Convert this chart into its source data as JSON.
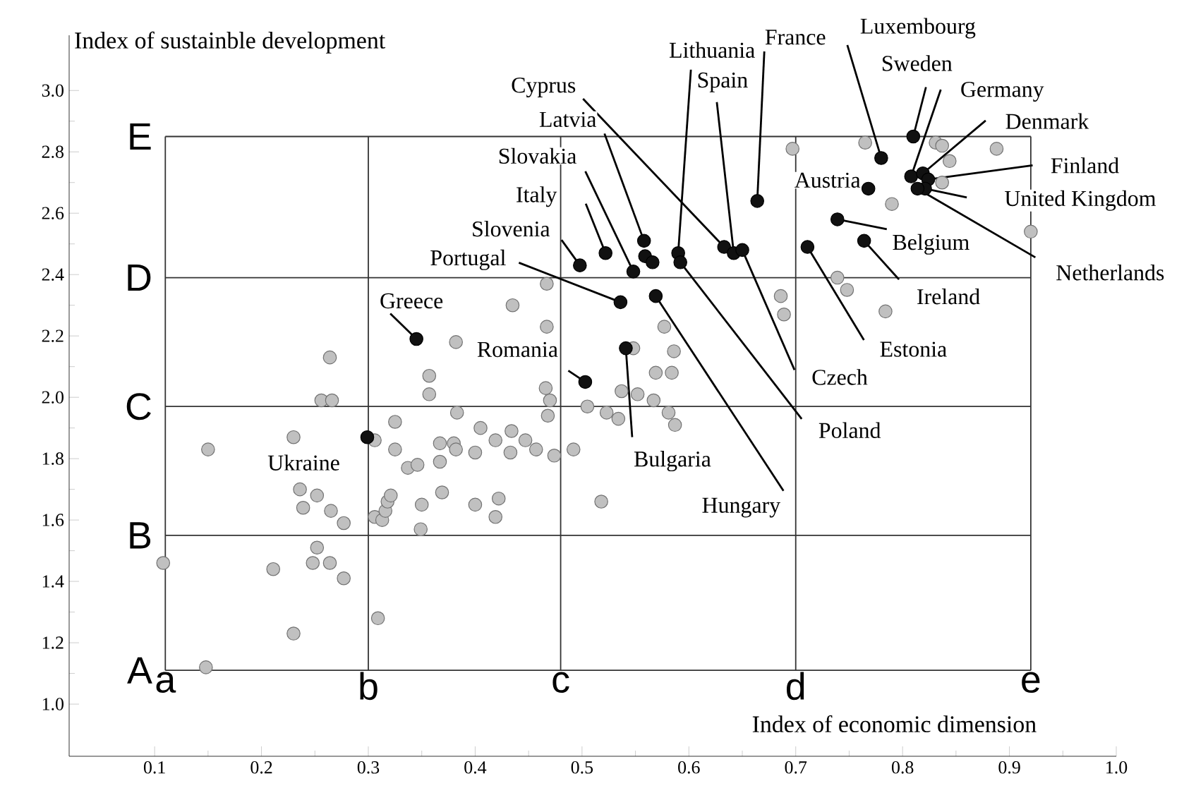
{
  "chart_data": {
    "type": "scatter",
    "xlabel": "Index of economic dimension",
    "ylabel": "Index of sustainble development",
    "xlim": [
      0.02,
      1.0
    ],
    "ylim": [
      0.83,
      3.18
    ],
    "xticks": [
      0.1,
      0.2,
      0.3,
      0.4,
      0.5,
      0.6,
      0.7,
      0.8,
      0.9,
      {
        "value": 1,
        "label": "1.0"
      }
    ],
    "yticks": [
      {
        "value": 1,
        "label": "1.0"
      },
      1.2,
      1.4,
      1.6,
      1.8,
      {
        "value": 2,
        "label": "2.0"
      },
      2.2,
      2.4,
      2.6,
      2.8,
      {
        "value": 3,
        "label": "3.0"
      }
    ],
    "marker": "circle",
    "series": [
      {
        "color": "#c0c0c0",
        "x": [
          0.264,
          0.256,
          0.266,
          0.23,
          0.15,
          0.306,
          0.325,
          0.325,
          0.337,
          0.346,
          0.357,
          0.357,
          0.382,
          0.383,
          0.367,
          0.38,
          0.382,
          0.367,
          0.4,
          0.405,
          0.419,
          0.434,
          0.433,
          0.447,
          0.435,
          0.236,
          0.252,
          0.239,
          0.265,
          0.277,
          0.306,
          0.313,
          0.316,
          0.318,
          0.321,
          0.35,
          0.349,
          0.369,
          0.4,
          0.419,
          0.422,
          0.108,
          0.211,
          0.252,
          0.248,
          0.264,
          0.277,
          0.309,
          0.23,
          0.148,
          0.467,
          0.467,
          0.466,
          0.47,
          0.468,
          0.457,
          0.474,
          0.492,
          0.518,
          0.505,
          0.523,
          0.534,
          0.537,
          0.552,
          0.567,
          0.581,
          0.587,
          0.548,
          0.569,
          0.584,
          0.586,
          0.577,
          0.686,
          0.689,
          0.697,
          0.765,
          0.831,
          0.837,
          0.844,
          0.888,
          0.837,
          0.79,
          0.92,
          0.739,
          0.748,
          0.784
        ],
        "values": [
          2.13,
          1.99,
          1.99,
          1.87,
          1.83,
          1.86,
          1.92,
          1.83,
          1.77,
          1.78,
          2.07,
          2.01,
          2.18,
          1.95,
          1.85,
          1.85,
          1.83,
          1.79,
          1.82,
          1.9,
          1.86,
          1.89,
          1.82,
          1.86,
          2.3,
          1.7,
          1.68,
          1.64,
          1.63,
          1.59,
          1.61,
          1.6,
          1.63,
          1.66,
          1.68,
          1.65,
          1.57,
          1.69,
          1.65,
          1.61,
          1.67,
          1.46,
          1.44,
          1.51,
          1.46,
          1.46,
          1.41,
          1.28,
          1.23,
          1.12,
          2.37,
          2.23,
          2.03,
          1.99,
          1.94,
          1.83,
          1.81,
          1.83,
          1.66,
          1.97,
          1.95,
          1.93,
          2.02,
          2.01,
          1.99,
          1.95,
          1.91,
          2.16,
          2.08,
          2.08,
          2.15,
          2.23,
          2.33,
          2.27,
          2.81,
          2.83,
          2.83,
          2.82,
          2.77,
          2.81,
          2.7,
          2.63,
          2.54,
          2.39,
          2.35,
          2.28
        ]
      },
      {
        "color": "#111111",
        "x": [
          0.345,
          0.299,
          0.498,
          0.522,
          0.548,
          0.558,
          0.633,
          0.59,
          0.642,
          0.65,
          0.664,
          0.536,
          0.569,
          0.541,
          0.503,
          0.592,
          0.711,
          0.78,
          0.81,
          0.768,
          0.808,
          0.819,
          0.824,
          0.821,
          0.814,
          0.739,
          0.764,
          0.559,
          0.566
        ],
        "values": [
          2.19,
          1.87,
          2.43,
          2.47,
          2.41,
          2.51,
          2.49,
          2.47,
          2.47,
          2.48,
          2.64,
          2.31,
          2.33,
          2.16,
          2.05,
          2.44,
          2.49,
          2.78,
          2.85,
          2.68,
          2.72,
          2.73,
          2.71,
          2.68,
          2.68,
          2.58,
          2.51,
          2.46,
          2.44
        ]
      }
    ],
    "annotations": [
      {
        "text": "Greece",
        "x": 0.345,
        "y": 2.19
      },
      {
        "text": "Ukraine",
        "x": 0.299,
        "y": 1.87
      },
      {
        "text": "Slovenia",
        "x": 0.498,
        "y": 2.43
      },
      {
        "text": "Italy",
        "x": 0.522,
        "y": 2.47
      },
      {
        "text": "Slovakia",
        "x": 0.548,
        "y": 2.41
      },
      {
        "text": "Latvia",
        "x": 0.558,
        "y": 2.51
      },
      {
        "text": "Cyprus",
        "x": 0.633,
        "y": 2.49
      },
      {
        "text": "Lithuania",
        "x": 0.59,
        "y": 2.47
      },
      {
        "text": "Spain",
        "x": 0.642,
        "y": 2.47
      },
      {
        "text": "Czech",
        "x": 0.65,
        "y": 2.48
      },
      {
        "text": "France",
        "x": 0.664,
        "y": 2.64
      },
      {
        "text": "Portugal",
        "x": 0.536,
        "y": 2.31
      },
      {
        "text": "Hungary",
        "x": 0.569,
        "y": 2.33
      },
      {
        "text": "Bulgaria",
        "x": 0.541,
        "y": 2.16
      },
      {
        "text": "Romania",
        "x": 0.503,
        "y": 2.05
      },
      {
        "text": "Poland",
        "x": 0.592,
        "y": 2.44
      },
      {
        "text": "Estonia",
        "x": 0.711,
        "y": 2.49
      },
      {
        "text": "Luxembourg",
        "x": 0.78,
        "y": 2.78
      },
      {
        "text": "Sweden",
        "x": 0.81,
        "y": 2.85
      },
      {
        "text": "Austria",
        "x": 0.768,
        "y": 2.68
      },
      {
        "text": "Germany",
        "x": 0.808,
        "y": 2.72
      },
      {
        "text": "Denmark",
        "x": 0.819,
        "y": 2.73
      },
      {
        "text": "Finland",
        "x": 0.824,
        "y": 2.71
      },
      {
        "text": "United Kingdom",
        "x": 0.821,
        "y": 2.68
      },
      {
        "text": "Netherlands",
        "x": 0.814,
        "y": 2.68
      },
      {
        "text": "Belgium",
        "x": 0.739,
        "y": 2.58
      },
      {
        "text": "Ireland",
        "x": 0.764,
        "y": 2.51
      }
    ],
    "ref_lines": [
      {
        "axis": "x",
        "value": 0.11,
        "label": "a"
      },
      {
        "axis": "x",
        "value": 0.3,
        "label": "b"
      },
      {
        "axis": "x",
        "value": 0.48,
        "label": "c"
      },
      {
        "axis": "x",
        "value": 0.7,
        "label": "d"
      },
      {
        "axis": "x",
        "value": 0.92,
        "label": "e"
      },
      {
        "axis": "y",
        "value": 1.11,
        "label": "A"
      },
      {
        "axis": "y",
        "value": 1.55,
        "label": "B"
      },
      {
        "axis": "y",
        "value": 1.97,
        "label": "C"
      },
      {
        "axis": "y",
        "value": 2.39,
        "label": "D"
      },
      {
        "axis": "y",
        "value": 2.85,
        "label": "E"
      }
    ]
  }
}
